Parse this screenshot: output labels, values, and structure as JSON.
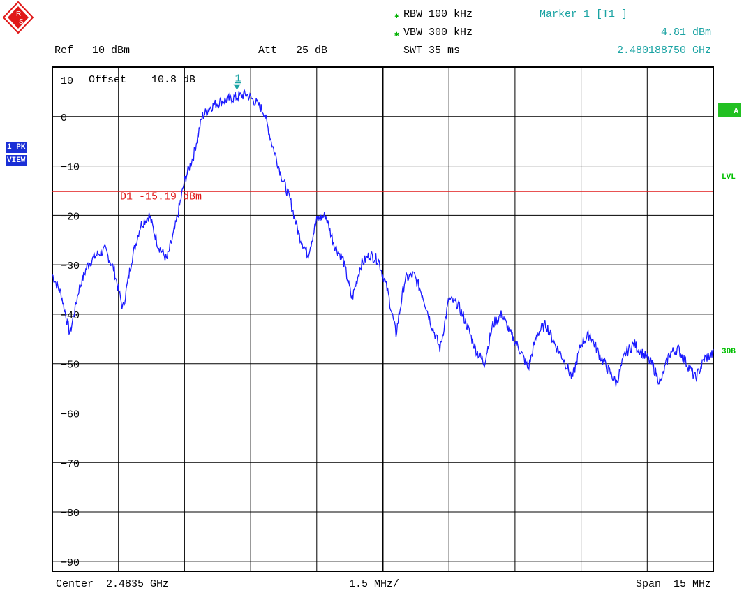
{
  "header": {
    "rbw": "RBW 100 kHz",
    "vbw": "VBW 300 kHz",
    "swt": "SWT 35 ms",
    "ref": "Ref   10 dBm",
    "att": "Att   25 dB",
    "marker_title": "Marker 1 [T1 ]",
    "marker_level": "4.81 dBm",
    "marker_freq": "2.480188750 GHz"
  },
  "footer": {
    "center": "Center  2.4835 GHz",
    "span_per_div": "1.5 MHz/",
    "span": "Span  15 MHz"
  },
  "left_tags": {
    "pk": "1 PK",
    "view": "VIEW"
  },
  "right_tags": {
    "a": "A",
    "lvl": "LVL",
    "db3": "3DB"
  },
  "offset_label": "Offset    10.8 dB",
  "colors": {
    "trace": "#1a1aff",
    "display_line": "#e01818",
    "marker": "#1aa3a3",
    "grid": "#000000"
  },
  "chart_data": {
    "type": "line",
    "xlim": [
      2.476,
      2.491
    ],
    "ylim": [
      -92,
      10
    ],
    "x_unit": "GHz",
    "y_unit": "dBm",
    "y_ticks": [
      "10",
      "0",
      "-10",
      "-20",
      "-30",
      "-40",
      "-50",
      "-60",
      "-70",
      "-80",
      "-90"
    ],
    "y_tick_values": [
      10,
      0,
      -10,
      -20,
      -30,
      -40,
      -50,
      -60,
      -70,
      -80,
      -90
    ],
    "grid": true,
    "display_line": {
      "label": "D1  -15.19 dBm",
      "value": -15.19
    },
    "marker": {
      "label": "1",
      "x": 2.48018875,
      "y": 4.81
    },
    "series": [
      {
        "x": [
          2.476,
          2.4762,
          2.4764,
          2.4766,
          2.4768,
          2.477,
          2.4772,
          2.4774,
          2.4776,
          2.4778,
          2.478,
          2.4782,
          2.4784,
          2.4786,
          2.4788,
          2.479,
          2.4792,
          2.4794,
          2.4796,
          2.4798,
          2.48,
          2.4802,
          2.4804,
          2.4806,
          2.4808,
          2.481,
          2.4812,
          2.4814,
          2.4816,
          2.4818,
          2.482,
          2.4822,
          2.4824,
          2.4826,
          2.4828,
          2.483,
          2.4832,
          2.4834,
          2.4836,
          2.4838,
          2.484,
          2.4842,
          2.4844,
          2.4846,
          2.4848,
          2.485,
          2.4852,
          2.4854,
          2.4856,
          2.4858,
          2.486,
          2.4862,
          2.4864,
          2.4866,
          2.4868,
          2.487,
          2.4872,
          2.4874,
          2.4876,
          2.4878,
          2.488,
          2.4882,
          2.4884,
          2.4886,
          2.4888,
          2.489,
          2.4892,
          2.4894,
          2.4896,
          2.4898,
          2.49,
          2.4902,
          2.4904,
          2.4906,
          2.4908,
          2.491
        ],
        "values": [
          -32,
          -36,
          -44,
          -35,
          -30,
          -28,
          -27,
          -31,
          -39,
          -29,
          -22,
          -20,
          -26,
          -29,
          -22,
          -13,
          -8,
          0,
          2,
          3,
          3.5,
          4,
          4.5,
          3,
          1,
          -6,
          -12,
          -17,
          -24,
          -28,
          -21,
          -20,
          -26,
          -29,
          -37,
          -30,
          -28,
          -29,
          -35,
          -44,
          -33,
          -32,
          -36,
          -42,
          -47,
          -37,
          -38,
          -42,
          -47,
          -50,
          -42,
          -40,
          -44,
          -47,
          -51,
          -44,
          -42,
          -46,
          -49,
          -53,
          -46,
          -44,
          -48,
          -51,
          -54,
          -48,
          -46,
          -48,
          -50,
          -54,
          -48,
          -47,
          -50,
          -53,
          -49,
          -48
        ]
      }
    ]
  }
}
